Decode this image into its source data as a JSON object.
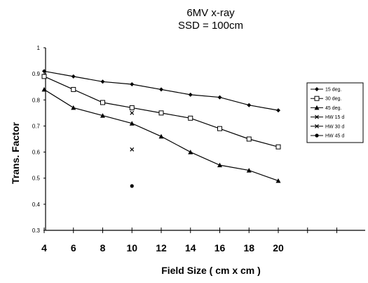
{
  "chart_data": {
    "type": "line",
    "title": "6MV x-ray",
    "subtitle": "SSD = 100cm",
    "xlabel": "Field Size ( cm x cm )",
    "ylabel": "Trans. Factor",
    "x_ticks": [
      4,
      6,
      8,
      10,
      12,
      14,
      16,
      18,
      20
    ],
    "y_ticks": [
      "0.3",
      "0.4",
      "0.5",
      "0.6",
      "0.7",
      "0.8",
      "0.9",
      "1"
    ],
    "ylim": [
      0.3,
      1.0
    ],
    "grid": false,
    "legend_position": "right",
    "series": [
      {
        "name": "15 deg.",
        "marker": "diamond",
        "x": [
          4,
          6,
          8,
          10,
          12,
          14,
          16,
          18,
          20
        ],
        "values": [
          0.91,
          0.89,
          0.87,
          0.86,
          0.84,
          0.82,
          0.81,
          0.78,
          0.76
        ]
      },
      {
        "name": "30 deg.",
        "marker": "square-open",
        "x": [
          4,
          6,
          8,
          10,
          12,
          14,
          16,
          18,
          20
        ],
        "values": [
          0.89,
          0.84,
          0.79,
          0.77,
          0.75,
          0.73,
          0.69,
          0.65,
          0.62
        ]
      },
      {
        "name": "45 deg.",
        "marker": "triangle",
        "x": [
          4,
          6,
          8,
          10,
          12,
          14,
          16,
          18,
          20
        ],
        "values": [
          0.84,
          0.77,
          0.74,
          0.71,
          0.66,
          0.6,
          0.55,
          0.53,
          0.49
        ]
      },
      {
        "name": "HW 15 d",
        "marker": "x",
        "x": [
          10
        ],
        "values": [
          0.75
        ]
      },
      {
        "name": "HW 30 d",
        "marker": "x",
        "x": [
          10
        ],
        "values": [
          0.61
        ]
      },
      {
        "name": "HW 45 d",
        "marker": "dot",
        "x": [
          10
        ],
        "values": [
          0.47
        ]
      }
    ]
  }
}
